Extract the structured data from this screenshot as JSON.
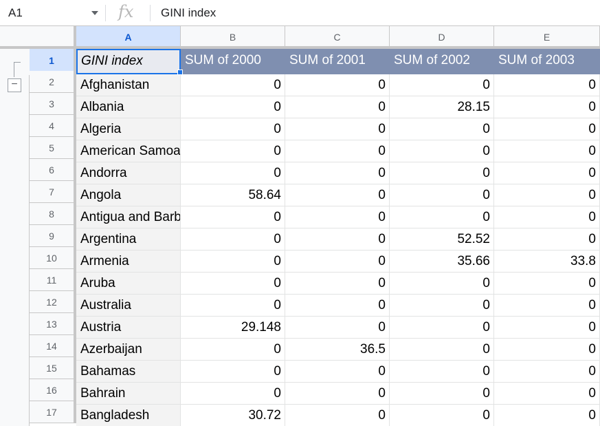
{
  "name_box": "A1",
  "formula": "GINI index",
  "column_headers": [
    "A",
    "B",
    "C",
    "D",
    "E"
  ],
  "header_row": [
    "GINI index",
    "SUM of 2000",
    "SUM of 2001",
    "SUM of 2002",
    "SUM of 2003"
  ],
  "rows": [
    {
      "num": "1"
    },
    {
      "num": "2",
      "country": "Afghanistan",
      "values": [
        "0",
        "0",
        "0",
        "0"
      ]
    },
    {
      "num": "3",
      "country": "Albania",
      "values": [
        "0",
        "0",
        "28.15",
        "0"
      ]
    },
    {
      "num": "4",
      "country": "Algeria",
      "values": [
        "0",
        "0",
        "0",
        "0"
      ]
    },
    {
      "num": "5",
      "country": "American Samoa",
      "values": [
        "0",
        "0",
        "0",
        "0"
      ]
    },
    {
      "num": "6",
      "country": "Andorra",
      "values": [
        "0",
        "0",
        "0",
        "0"
      ]
    },
    {
      "num": "7",
      "country": "Angola",
      "values": [
        "58.64",
        "0",
        "0",
        "0"
      ]
    },
    {
      "num": "8",
      "country": "Antigua and Barbuda",
      "values": [
        "0",
        "0",
        "0",
        "0"
      ]
    },
    {
      "num": "9",
      "country": "Argentina",
      "values": [
        "0",
        "0",
        "52.52",
        "0"
      ]
    },
    {
      "num": "10",
      "country": "Armenia",
      "values": [
        "0",
        "0",
        "35.66",
        "33.8"
      ]
    },
    {
      "num": "11",
      "country": "Aruba",
      "values": [
        "0",
        "0",
        "0",
        "0"
      ]
    },
    {
      "num": "12",
      "country": "Australia",
      "values": [
        "0",
        "0",
        "0",
        "0"
      ]
    },
    {
      "num": "13",
      "country": "Austria",
      "values": [
        "29.148",
        "0",
        "0",
        "0"
      ]
    },
    {
      "num": "14",
      "country": "Azerbaijan",
      "values": [
        "0",
        "36.5",
        "0",
        "0"
      ]
    },
    {
      "num": "15",
      "country": "Bahamas",
      "values": [
        "0",
        "0",
        "0",
        "0"
      ]
    },
    {
      "num": "16",
      "country": "Bahrain",
      "values": [
        "0",
        "0",
        "0",
        "0"
      ]
    },
    {
      "num": "17",
      "country": "Bangladesh",
      "values": [
        "30.72",
        "0",
        "0",
        "0"
      ]
    }
  ],
  "icons": {
    "fx": "fx-function-icon",
    "dropdown": "chevron-down-icon",
    "collapse": "minus-icon"
  },
  "group_collapse_label": "−",
  "colors": {
    "header_fill": "#7f8fb0",
    "selection": "#1a73e8",
    "column_a_fill": "#f3f3f3"
  }
}
